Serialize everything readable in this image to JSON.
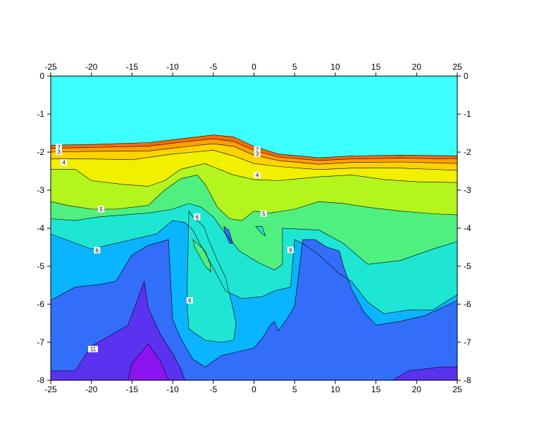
{
  "chart_data": {
    "type": "heatmap",
    "title": "",
    "xlabel": "",
    "ylabel": "",
    "xlim": [
      -25,
      25
    ],
    "ylim": [
      -8,
      0
    ],
    "x_ticks": [
      "-25",
      "-20",
      "-15",
      "-10",
      "-5",
      "0",
      "5",
      "10",
      "15",
      "20",
      "25"
    ],
    "y_ticks": [
      "0",
      "-1",
      "-2",
      "-3",
      "-4",
      "-5",
      "-6",
      "-7",
      "-8"
    ],
    "grid": false,
    "legend": "none",
    "background_color": "#3cffff",
    "levels": [
      {
        "value": 2,
        "color": "#ff6a00",
        "boundary": [
          [
            -25,
            -1.82
          ],
          [
            -20,
            -1.8
          ],
          [
            -13,
            -1.75
          ],
          [
            -9,
            -1.65
          ],
          [
            -5,
            -1.55
          ],
          [
            -2.5,
            -1.6
          ],
          [
            0,
            -1.85
          ],
          [
            3,
            -2.05
          ],
          [
            8,
            -2.15
          ],
          [
            12,
            -2.1
          ],
          [
            18,
            -2.08
          ],
          [
            25,
            -2.1
          ]
        ]
      },
      {
        "value": 3,
        "color": "#ffa000",
        "boundary": [
          [
            -25,
            -1.9
          ],
          [
            -20,
            -1.88
          ],
          [
            -13,
            -1.84
          ],
          [
            -9,
            -1.74
          ],
          [
            -5,
            -1.65
          ],
          [
            -2.5,
            -1.72
          ],
          [
            0,
            -1.95
          ],
          [
            3,
            -2.13
          ],
          [
            8,
            -2.22
          ],
          [
            12,
            -2.18
          ],
          [
            18,
            -2.16
          ],
          [
            25,
            -2.18
          ]
        ]
      },
      {
        "value": 3.5,
        "color": "#ffd200",
        "boundary": [
          [
            -25,
            -2.0
          ],
          [
            -20,
            -1.98
          ],
          [
            -13,
            -1.97
          ],
          [
            -9,
            -1.87
          ],
          [
            -5,
            -1.78
          ],
          [
            -2.5,
            -1.85
          ],
          [
            0,
            -2.08
          ],
          [
            3,
            -2.22
          ],
          [
            8,
            -2.32
          ],
          [
            12,
            -2.27
          ],
          [
            18,
            -2.26
          ],
          [
            25,
            -2.3
          ]
        ]
      },
      {
        "value": 4,
        "color": "#f0f000",
        "boundary": [
          [
            -25,
            -2.18
          ],
          [
            -20,
            -2.18
          ],
          [
            -15,
            -2.2
          ],
          [
            -10,
            -2.05
          ],
          [
            -5,
            -1.95
          ],
          [
            -2.5,
            -2.1
          ],
          [
            0,
            -2.3
          ],
          [
            3,
            -2.38
          ],
          [
            8,
            -2.46
          ],
          [
            12,
            -2.42
          ],
          [
            18,
            -2.42
          ],
          [
            25,
            -2.48
          ]
        ]
      },
      {
        "value": 4.5,
        "color": "#b4f51e",
        "boundary": [
          [
            -25,
            -2.45
          ],
          [
            -22,
            -2.45
          ],
          [
            -20,
            -2.75
          ],
          [
            -16,
            -2.85
          ],
          [
            -13,
            -2.9
          ],
          [
            -11,
            -2.75
          ],
          [
            -9,
            -2.45
          ],
          [
            -6,
            -2.3
          ],
          [
            -5.5,
            -2.35
          ],
          [
            -2.5,
            -2.6
          ],
          [
            0,
            -2.72
          ],
          [
            3,
            -2.75
          ],
          [
            8,
            -2.65
          ],
          [
            12,
            -2.6
          ],
          [
            16,
            -2.72
          ],
          [
            20,
            -2.78
          ],
          [
            25,
            -2.8
          ]
        ]
      },
      {
        "value": 5,
        "color": "#50f080",
        "boundary": [
          [
            -25,
            -3.3
          ],
          [
            -23,
            -3.4
          ],
          [
            -20,
            -3.5
          ],
          [
            -17,
            -3.5
          ],
          [
            -13,
            -3.4
          ],
          [
            -11,
            -3.0
          ],
          [
            -9,
            -2.7
          ],
          [
            -7,
            -2.6
          ],
          [
            -6,
            -2.85
          ],
          [
            -4.5,
            -3.45
          ],
          [
            -3,
            -3.75
          ],
          [
            -1.5,
            -3.8
          ],
          [
            0,
            -3.55
          ],
          [
            2,
            -3.6
          ],
          [
            5,
            -3.5
          ],
          [
            8,
            -3.3
          ],
          [
            11,
            -3.35
          ],
          [
            14,
            -3.45
          ],
          [
            18,
            -3.55
          ],
          [
            22,
            -3.62
          ],
          [
            25,
            -3.65
          ]
        ]
      },
      {
        "value": 6,
        "color": "#1ee6d2",
        "boundary": [
          [
            -25,
            -3.75
          ],
          [
            -22,
            -3.8
          ],
          [
            -19,
            -3.7
          ],
          [
            -13,
            -3.6
          ],
          [
            -10,
            -3.5
          ],
          [
            -8,
            -3.35
          ],
          [
            -6.5,
            -3.45
          ],
          [
            -5,
            -3.7
          ],
          [
            -3.5,
            -4.15
          ],
          [
            -1.8,
            -4.6
          ],
          [
            0.5,
            -4.9
          ],
          [
            2.5,
            -5.1
          ],
          [
            3.5,
            -4.95
          ],
          [
            3.5,
            -4.0
          ],
          [
            8,
            -4.05
          ],
          [
            11,
            -4.4
          ],
          [
            14,
            -4.95
          ],
          [
            18,
            -4.85
          ],
          [
            22,
            -4.55
          ],
          [
            25,
            -4.35
          ]
        ]
      },
      {
        "value": 7,
        "color": "#0ab4ff",
        "boundary": [
          [
            -25,
            -4.15
          ],
          [
            -20,
            -4.55
          ],
          [
            -17,
            -4.4
          ],
          [
            -12,
            -4.15
          ],
          [
            -10,
            -3.8
          ],
          [
            -8.5,
            -3.85
          ],
          [
            -7.5,
            -4.05
          ],
          [
            -6.8,
            -4.35
          ],
          [
            -5.5,
            -4.85
          ],
          [
            -4.5,
            -5.25
          ],
          [
            -3.5,
            -5.65
          ],
          [
            -1.5,
            -5.85
          ],
          [
            1,
            -5.8
          ],
          [
            2.5,
            -5.65
          ],
          [
            4.5,
            -5.55
          ],
          [
            5,
            -4.3
          ],
          [
            6,
            -4.4
          ],
          [
            8,
            -4.7
          ],
          [
            10.5,
            -5.2
          ],
          [
            12,
            -5.4
          ],
          [
            14,
            -5.95
          ],
          [
            16,
            -6.25
          ],
          [
            19,
            -6.15
          ],
          [
            22,
            -6.15
          ],
          [
            25,
            -5.75
          ]
        ]
      },
      {
        "value": 9,
        "color": "#326efa",
        "boundary": [
          [
            -25,
            -5.9
          ],
          [
            -22,
            -5.55
          ],
          [
            -19,
            -5.48
          ],
          [
            -17,
            -5.4
          ],
          [
            -15,
            -4.7
          ],
          [
            -13,
            -4.45
          ],
          [
            -10.5,
            -4.3
          ],
          [
            -10.3,
            -5.2
          ],
          [
            -10,
            -6.4
          ],
          [
            -9,
            -6.9
          ],
          [
            -7.5,
            -7.45
          ],
          [
            -6,
            -7.65
          ],
          [
            -4,
            -7.35
          ],
          [
            -2,
            -7.25
          ],
          [
            0,
            -7.15
          ],
          [
            1,
            -6.9
          ],
          [
            2,
            -6.55
          ],
          [
            2.5,
            -6.45
          ],
          [
            3,
            -6.7
          ],
          [
            4,
            -6.4
          ],
          [
            5,
            -6.05
          ],
          [
            5.5,
            -5.2
          ],
          [
            6,
            -4.3
          ],
          [
            7.5,
            -4.3
          ],
          [
            9,
            -4.5
          ],
          [
            10.5,
            -4.6
          ],
          [
            11,
            -5.0
          ],
          [
            12,
            -5.6
          ],
          [
            13.5,
            -6.2
          ],
          [
            15,
            -6.55
          ],
          [
            18,
            -6.45
          ],
          [
            21,
            -6.3
          ],
          [
            25,
            -5.9
          ]
        ]
      },
      {
        "value": 11,
        "color": "#5a32f0",
        "boundary": [
          [
            -25,
            -7.75
          ],
          [
            -22,
            -7.75
          ],
          [
            -20,
            -7.1
          ],
          [
            -17.5,
            -6.8
          ],
          [
            -15.5,
            -6.55
          ],
          [
            -13.5,
            -5.4
          ],
          [
            -13,
            -6.1
          ],
          [
            -11.5,
            -6.8
          ],
          [
            -10,
            -7.3
          ],
          [
            -9,
            -7.7
          ],
          [
            -8.5,
            -8.0
          ],
          [
            17,
            -8.0
          ],
          [
            19,
            -7.75
          ],
          [
            23,
            -7.65
          ],
          [
            25,
            -7.65
          ]
        ]
      },
      {
        "value": 12,
        "color": "#8c14f0",
        "boundary": [
          [
            -15.5,
            -8.0
          ],
          [
            -15,
            -7.55
          ],
          [
            -13,
            -7.05
          ],
          [
            -11.5,
            -7.5
          ],
          [
            -10.5,
            -8.0
          ]
        ]
      }
    ],
    "islands": [
      {
        "value": 7,
        "color": "#1ee6d2",
        "shape": [
          [
            -8,
            -3.55
          ],
          [
            -7.5,
            -3.7
          ],
          [
            -6.2,
            -3.95
          ],
          [
            -5.6,
            -4.3
          ],
          [
            -4.6,
            -4.8
          ],
          [
            -3.5,
            -5.3
          ],
          [
            -2.6,
            -6.1
          ],
          [
            -2.2,
            -6.5
          ],
          [
            -2.5,
            -6.95
          ],
          [
            -4,
            -7.0
          ],
          [
            -6,
            -6.95
          ],
          [
            -8,
            -6.65
          ],
          [
            -8.2,
            -6.1
          ],
          [
            -8.2,
            -5.3
          ],
          [
            -8.1,
            -4.55
          ]
        ]
      },
      {
        "value": 6,
        "color": "#50f080",
        "shape": [
          [
            -7.5,
            -4.3
          ],
          [
            -6,
            -4.6
          ],
          [
            -5.4,
            -4.95
          ],
          [
            -5.3,
            -5.15
          ],
          [
            -6,
            -5.0
          ],
          [
            -7.3,
            -4.5
          ]
        ]
      },
      {
        "value": 8,
        "color": "#326efa",
        "shape": [
          [
            -3.7,
            -3.95
          ],
          [
            -3.1,
            -4.05
          ],
          [
            -2.6,
            -4.4
          ],
          [
            -3.0,
            -4.4
          ],
          [
            -3.6,
            -4.1
          ]
        ]
      },
      {
        "value": 6,
        "color": "#1ee6d2",
        "shape": [
          [
            0.2,
            -3.95
          ],
          [
            1.0,
            -3.95
          ],
          [
            1.4,
            -4.2
          ],
          [
            1.0,
            -4.15
          ]
        ]
      }
    ],
    "contour_labels": [
      {
        "text": "2",
        "x": -24,
        "y": -1.87
      },
      {
        "text": "3",
        "x": -24,
        "y": -1.99
      },
      {
        "text": "4",
        "x": -23.4,
        "y": -2.27
      },
      {
        "text": "5",
        "x": -18.8,
        "y": -3.5
      },
      {
        "text": "6",
        "x": -19.3,
        "y": -4.58
      },
      {
        "text": "11",
        "x": -19.8,
        "y": -7.18
      },
      {
        "text": "6",
        "x": -7,
        "y": -3.7
      },
      {
        "text": "6",
        "x": -7.9,
        "y": -5.9
      },
      {
        "text": "2",
        "x": 0.4,
        "y": -1.93
      },
      {
        "text": "3",
        "x": 0.4,
        "y": -2.04
      },
      {
        "text": "4",
        "x": 0.4,
        "y": -2.6
      },
      {
        "text": "5",
        "x": 1.2,
        "y": -3.62
      },
      {
        "text": "6",
        "x": 4.5,
        "y": -4.57
      }
    ]
  }
}
